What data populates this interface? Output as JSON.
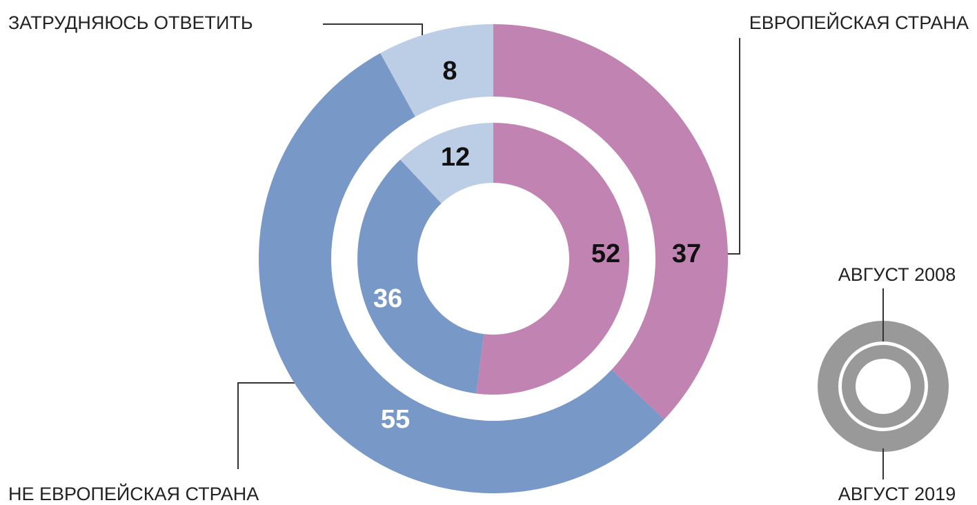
{
  "chart_data": {
    "type": "donut",
    "categories": [
      "ЕВРОПЕЙСКАЯ СТРАНА",
      "НЕ ЕВРОПЕЙСКАЯ СТРАНА",
      "ЗАТРУДНЯЮСЬ ОТВЕТИТЬ"
    ],
    "colors": [
      "#c183b1",
      "#7898c8",
      "#bccde6"
    ],
    "series": [
      {
        "name": "АВГУСТ 2019",
        "values": [
          37,
          55,
          8
        ]
      },
      {
        "name": "АВГУСТ 2008",
        "values": [
          52,
          36,
          12
        ]
      }
    ],
    "legend_color": "#999999"
  }
}
